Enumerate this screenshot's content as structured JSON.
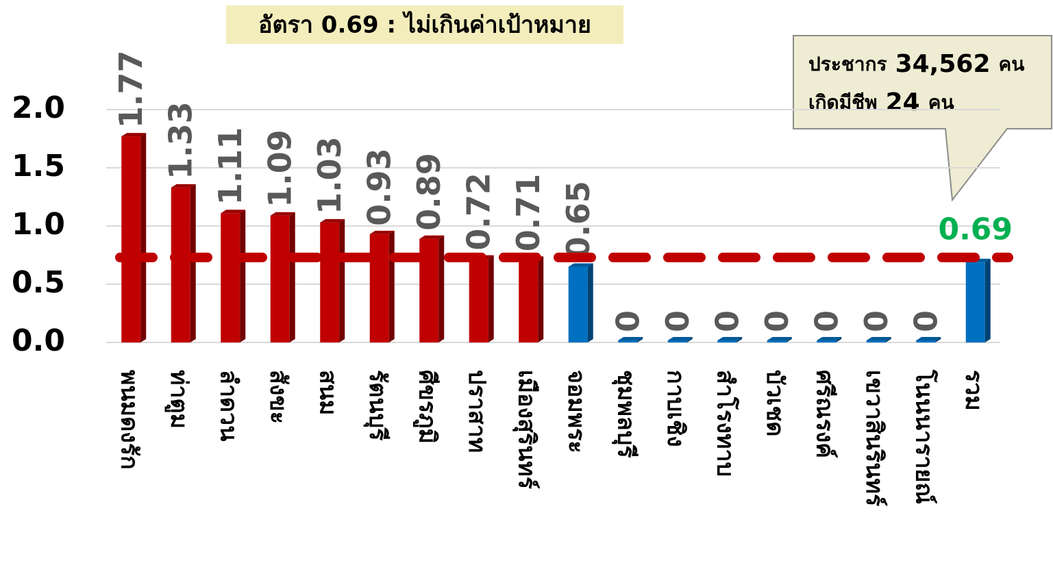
{
  "chart_data": {
    "type": "bar",
    "title": "อัตรา 0.69 : ไม่เกินค่าเป้าหมาย",
    "annotation": {
      "lines": [
        [
          "ประชากร",
          "34,562",
          "คน"
        ],
        [
          "เกิดมีชีพ",
          "24",
          "คน"
        ]
      ]
    },
    "categories": [
      "พนมดงรัก",
      "ท่าตูม",
      "ลำดวน",
      "สังขะ",
      "สนม",
      "รัตนบุรี",
      "ศีขรภูมิ",
      "ปราสาท",
      "เมืองสุรินทร์",
      "จอมพระ",
      "ชุมพลบุรี",
      "กาบเชิง",
      "สำโรงทาบ",
      "บัวเชด",
      "ศรีณรงค์",
      "เขวาสินรินทร์",
      "โนนนารายณ์",
      "รวม"
    ],
    "values": [
      1.77,
      1.33,
      1.11,
      1.09,
      1.03,
      0.93,
      0.89,
      0.72,
      0.71,
      0.65,
      0,
      0,
      0,
      0,
      0,
      0,
      0,
      0.69
    ],
    "colors": [
      "#c00000",
      "#c00000",
      "#c00000",
      "#c00000",
      "#c00000",
      "#c00000",
      "#c00000",
      "#c00000",
      "#c00000",
      "#0070c0",
      "#0070c0",
      "#0070c0",
      "#0070c0",
      "#0070c0",
      "#0070c0",
      "#0070c0",
      "#0070c0",
      "#0070c0"
    ],
    "total_label_color": "#00b050",
    "target_line": 0.73,
    "target_color": "#c00000",
    "ylim": [
      0,
      2
    ],
    "yticks": [
      {
        "value": 0,
        "label": "0.0"
      },
      {
        "value": 0.5,
        "label": "0.5"
      },
      {
        "value": 1,
        "label": "1.0"
      },
      {
        "value": 1.5,
        "label": "1.5"
      },
      {
        "value": 2,
        "label": "2.0"
      }
    ],
    "grid": true
  }
}
